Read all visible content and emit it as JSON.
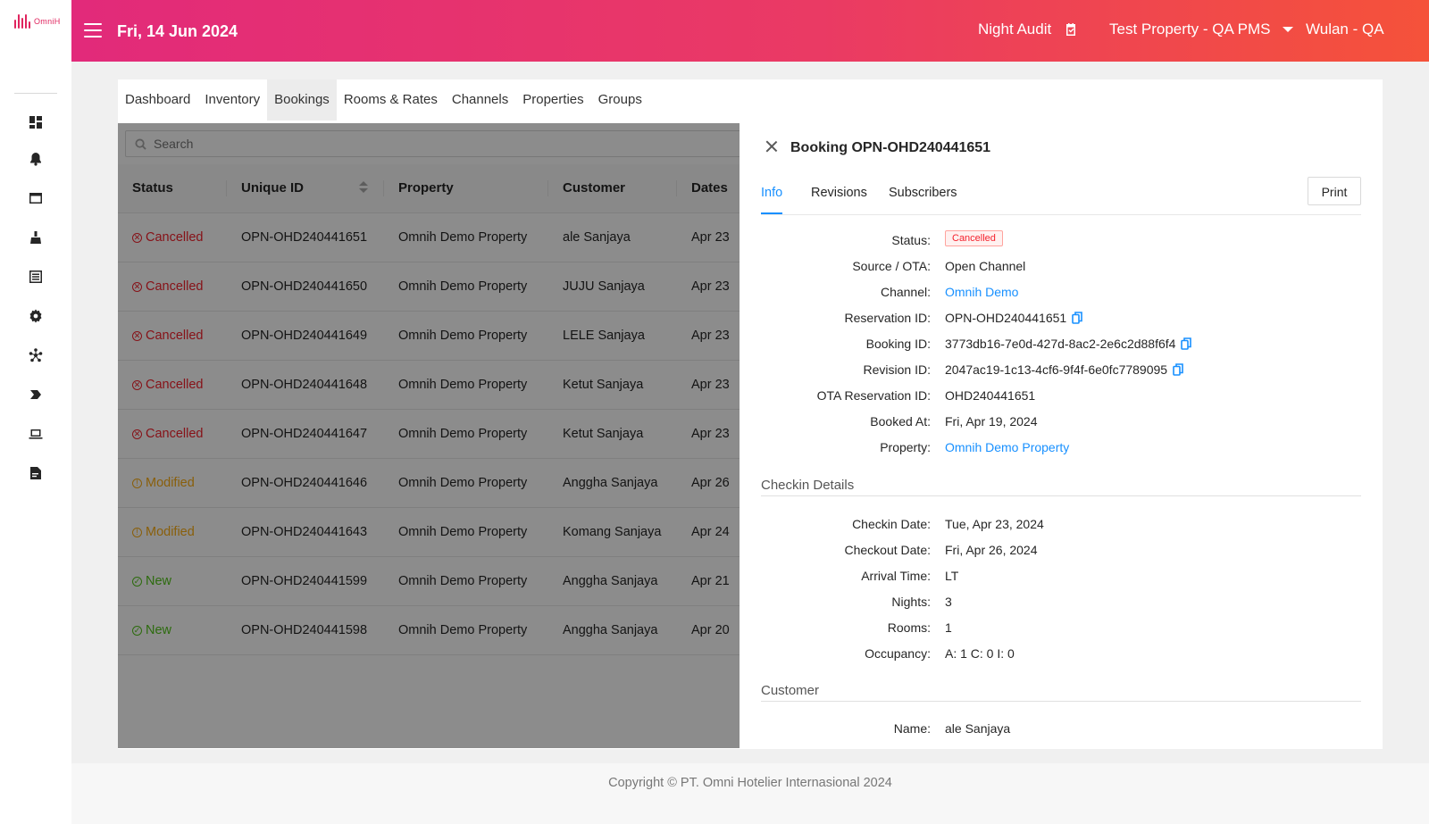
{
  "app": {
    "logo_text": "OmniH"
  },
  "topbar": {
    "date": "Fri, 14 Jun 2024",
    "night_audit": "Night Audit",
    "property": "Test Property - QA PMS",
    "user": "Wulan - QA"
  },
  "sidebar": {
    "icons": [
      "dashboard-icon",
      "notification-bell-icon",
      "window-icon",
      "cleaning-icon",
      "list-icon",
      "settings-gear-icon",
      "network-icon",
      "tag-label-icon",
      "laptop-icon",
      "document-icon"
    ]
  },
  "nav_tabs": [
    {
      "label": "Dashboard"
    },
    {
      "label": "Inventory"
    },
    {
      "label": "Bookings",
      "active": true
    },
    {
      "label": "Rooms & Rates"
    },
    {
      "label": "Channels"
    },
    {
      "label": "Properties"
    },
    {
      "label": "Groups"
    }
  ],
  "search": {
    "placeholder": "Search"
  },
  "table": {
    "headers": {
      "status": "Status",
      "unique_id": "Unique ID",
      "property": "Property",
      "customer": "Customer",
      "dates": "Dates"
    },
    "rows": [
      {
        "status": "Cancelled",
        "status_kind": "cancelled",
        "unique_id": "OPN-OHD240441651",
        "property": "Omnih Demo Property",
        "customer": "ale Sanjaya",
        "dates": "Apr 23"
      },
      {
        "status": "Cancelled",
        "status_kind": "cancelled",
        "unique_id": "OPN-OHD240441650",
        "property": "Omnih Demo Property",
        "customer": "JUJU Sanjaya",
        "dates": "Apr 23"
      },
      {
        "status": "Cancelled",
        "status_kind": "cancelled",
        "unique_id": "OPN-OHD240441649",
        "property": "Omnih Demo Property",
        "customer": "LELE Sanjaya",
        "dates": "Apr 23"
      },
      {
        "status": "Cancelled",
        "status_kind": "cancelled",
        "unique_id": "OPN-OHD240441648",
        "property": "Omnih Demo Property",
        "customer": "Ketut Sanjaya",
        "dates": "Apr 23"
      },
      {
        "status": "Cancelled",
        "status_kind": "cancelled",
        "unique_id": "OPN-OHD240441647",
        "property": "Omnih Demo Property",
        "customer": "Ketut Sanjaya",
        "dates": "Apr 23"
      },
      {
        "status": "Modified",
        "status_kind": "modified",
        "unique_id": "OPN-OHD240441646",
        "property": "Omnih Demo Property",
        "customer": "Anggha Sanjaya",
        "dates": "Apr 26"
      },
      {
        "status": "Modified",
        "status_kind": "modified",
        "unique_id": "OPN-OHD240441643",
        "property": "Omnih Demo Property",
        "customer": "Komang Sanjaya",
        "dates": "Apr 24"
      },
      {
        "status": "New",
        "status_kind": "new",
        "unique_id": "OPN-OHD240441599",
        "property": "Omnih Demo Property",
        "customer": "Anggha Sanjaya",
        "dates": "Apr 21"
      },
      {
        "status": "New",
        "status_kind": "new",
        "unique_id": "OPN-OHD240441598",
        "property": "Omnih Demo Property",
        "customer": "Anggha Sanjaya",
        "dates": "Apr 20"
      }
    ]
  },
  "drawer": {
    "title": "Booking OPN-OHD240441651",
    "tabs": [
      "Info",
      "Revisions",
      "Subscribers"
    ],
    "print_label": "Print",
    "info": [
      {
        "label": "Status:",
        "value": "Cancelled",
        "kind": "tag"
      },
      {
        "label": "Source / OTA:",
        "value": "Open Channel"
      },
      {
        "label": "Channel:",
        "value": "Omnih Demo",
        "kind": "link"
      },
      {
        "label": "Reservation ID:",
        "value": "OPN-OHD240441651",
        "copy": true
      },
      {
        "label": "Booking ID:",
        "value": "3773db16-7e0d-427d-8ac2-2e6c2d88f6f4",
        "copy": true
      },
      {
        "label": "Revision ID:",
        "value": "2047ac19-1c13-4cf6-9f4f-6e0fc7789095",
        "copy": true
      },
      {
        "label": "OTA Reservation ID:",
        "value": "OHD240441651"
      },
      {
        "label": "Booked At:",
        "value": "Fri, Apr 19, 2024"
      },
      {
        "label": "Property:",
        "value": "Omnih Demo Property",
        "kind": "link"
      }
    ],
    "checkin_title": "Checkin Details",
    "checkin": [
      {
        "label": "Checkin Date:",
        "value": "Tue, Apr 23, 2024"
      },
      {
        "label": "Checkout Date:",
        "value": "Fri, Apr 26, 2024"
      },
      {
        "label": "Arrival Time:",
        "value": "LT"
      },
      {
        "label": "Nights:",
        "value": "3"
      },
      {
        "label": "Rooms:",
        "value": "1"
      },
      {
        "label": "Occupancy:",
        "value": "A: 1  C: 0  I: 0"
      }
    ],
    "customer_title": "Customer",
    "customer": [
      {
        "label": "Name:",
        "value": "ale Sanjaya"
      }
    ]
  },
  "footer": {
    "text": "Copyright © PT. Omni Hotelier Internasional 2024"
  },
  "colors": {
    "brand_start": "#e22a7a",
    "brand_end": "#f5523a",
    "link": "#1890ff",
    "cancelled": "#f5222d",
    "modified": "#faad14",
    "new": "#52c41a"
  }
}
